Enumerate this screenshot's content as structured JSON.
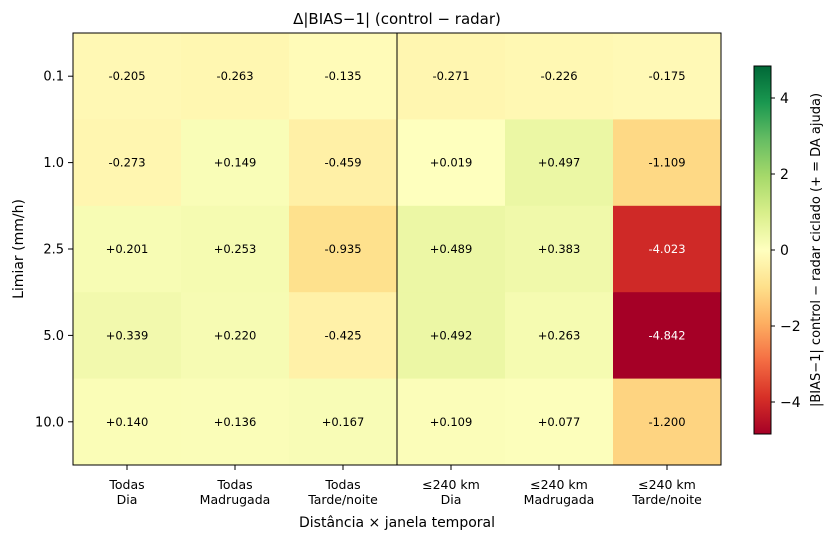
{
  "chart_data": {
    "type": "heatmap",
    "title": "Δ|BIAS−1|  (control − radar)",
    "xlabel": "Distância × janela temporal",
    "ylabel": "Limiar (mm/h)",
    "x_categories": [
      [
        "Todas",
        "Dia"
      ],
      [
        "Todas",
        "Madrugada"
      ],
      [
        "Todas",
        "Tarde/noite"
      ],
      [
        "≤240 km",
        "Dia"
      ],
      [
        "≤240 km",
        "Madrugada"
      ],
      [
        "≤240 km",
        "Tarde/noite"
      ]
    ],
    "y_categories": [
      "0.1",
      "1.0",
      "2.5",
      "5.0",
      "10.0"
    ],
    "values": [
      [
        -0.205,
        -0.263,
        -0.135,
        -0.271,
        -0.226,
        -0.175
      ],
      [
        -0.273,
        0.149,
        -0.459,
        0.019,
        0.497,
        -1.109
      ],
      [
        0.201,
        0.253,
        -0.935,
        0.489,
        0.383,
        -4.023
      ],
      [
        0.339,
        0.22,
        -0.425,
        0.492,
        0.263,
        -4.842
      ],
      [
        0.14,
        0.136,
        0.167,
        0.109,
        0.077,
        -1.2
      ]
    ],
    "cell_labels": [
      [
        "-0.205",
        "-0.263",
        "-0.135",
        "-0.271",
        "-0.226",
        "-0.175"
      ],
      [
        "-0.273",
        "+0.149",
        "-0.459",
        "+0.019",
        "+0.497",
        "-1.109"
      ],
      [
        "+0.201",
        "+0.253",
        "-0.935",
        "+0.489",
        "+0.383",
        "-4.023"
      ],
      [
        "+0.339",
        "+0.220",
        "-0.425",
        "+0.492",
        "+0.263",
        "-4.842"
      ],
      [
        "+0.140",
        "+0.136",
        "+0.167",
        "+0.109",
        "+0.077",
        "-1.200"
      ]
    ],
    "colormap": "RdYlGn",
    "vmin": -4.842,
    "vmax": 4.842,
    "colorbar": {
      "label": "|BIAS−1| control − radar ciclado  (+ = DA ajuda)",
      "ticks": [
        4,
        2,
        0,
        -2,
        -4
      ],
      "tick_labels": [
        "4",
        "2",
        "0",
        "−2",
        "−4"
      ]
    },
    "separator_after_column": 3
  }
}
